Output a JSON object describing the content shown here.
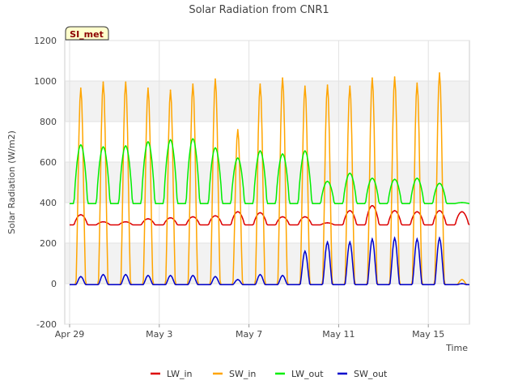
{
  "chart_data": {
    "type": "line",
    "title": "Solar Radiation from CNR1",
    "xlabel": "Time",
    "ylabel": "Solar Radiation (W/m2)",
    "badge": "SI_met",
    "ylim": [
      -200,
      1200
    ],
    "yticks": [
      -200,
      0,
      200,
      400,
      600,
      800,
      1000,
      1200
    ],
    "xlim": [
      "2024-04-29",
      "2024-05-17"
    ],
    "xticks": [
      {
        "date": "2024-04-29",
        "label": "Apr 29"
      },
      {
        "date": "2024-05-03",
        "label": "May 3"
      },
      {
        "date": "2024-05-07",
        "label": "May 7"
      },
      {
        "date": "2024-05-11",
        "label": "May 11"
      },
      {
        "date": "2024-05-15",
        "label": "May 15"
      }
    ],
    "grid": true,
    "legend_position": "bottom",
    "x": [
      "2024-04-29 12:00",
      "2024-04-30 12:00",
      "2024-05-01 12:00",
      "2024-05-02 12:00",
      "2024-05-03 12:00",
      "2024-05-04 12:00",
      "2024-05-05 12:00",
      "2024-05-06 12:00",
      "2024-05-07 12:00",
      "2024-05-08 12:00",
      "2024-05-09 12:00",
      "2024-05-10 12:00",
      "2024-05-11 12:00",
      "2024-05-12 12:00",
      "2024-05-13 12:00",
      "2024-05-14 12:00",
      "2024-05-15 12:00",
      "2024-05-16 12:00"
    ],
    "series": [
      {
        "name": "LW_in",
        "color": "#dd0000",
        "values": [
          340,
          305,
          305,
          320,
          325,
          330,
          335,
          355,
          350,
          330,
          330,
          300,
          360,
          385,
          360,
          355,
          360,
          355
        ]
      },
      {
        "name": "SW_in",
        "color": "#ffa500",
        "values": [
          965,
          995,
          995,
          965,
          955,
          985,
          1010,
          760,
          985,
          1015,
          975,
          980,
          975,
          1015,
          1020,
          990,
          1040,
          20
        ]
      },
      {
        "name": "LW_out",
        "color": "#00ee00",
        "values": [
          685,
          675,
          680,
          700,
          710,
          715,
          670,
          620,
          655,
          640,
          655,
          505,
          545,
          520,
          515,
          520,
          495,
          400
        ]
      },
      {
        "name": "SW_out",
        "color": "#0000cc",
        "values": [
          35,
          45,
          45,
          40,
          40,
          40,
          35,
          20,
          45,
          40,
          160,
          205,
          205,
          220,
          225,
          220,
          225,
          0
        ]
      }
    ]
  }
}
